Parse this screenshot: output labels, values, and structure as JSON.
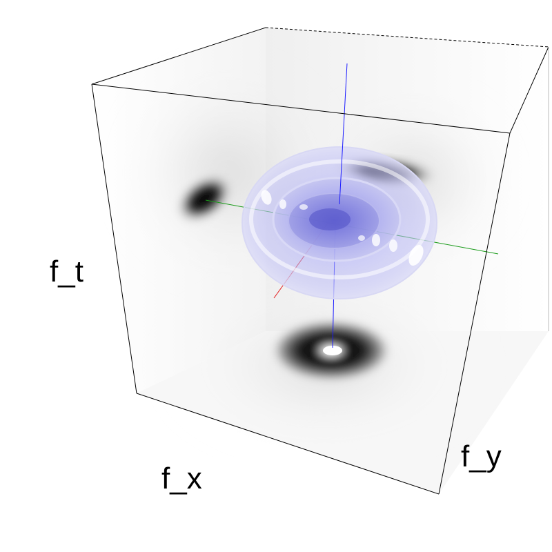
{
  "axis_labels": {
    "x": "f_x",
    "y": "f_y",
    "t": "f_t"
  },
  "colors": {
    "frame": "#000000",
    "axis_x": "#e41a1c",
    "axis_y": "#1a9b1a",
    "axis_t": "#1a1aff",
    "isosurface": "#8f8fff",
    "shadow": "#000000",
    "background": "#ffffff"
  }
}
